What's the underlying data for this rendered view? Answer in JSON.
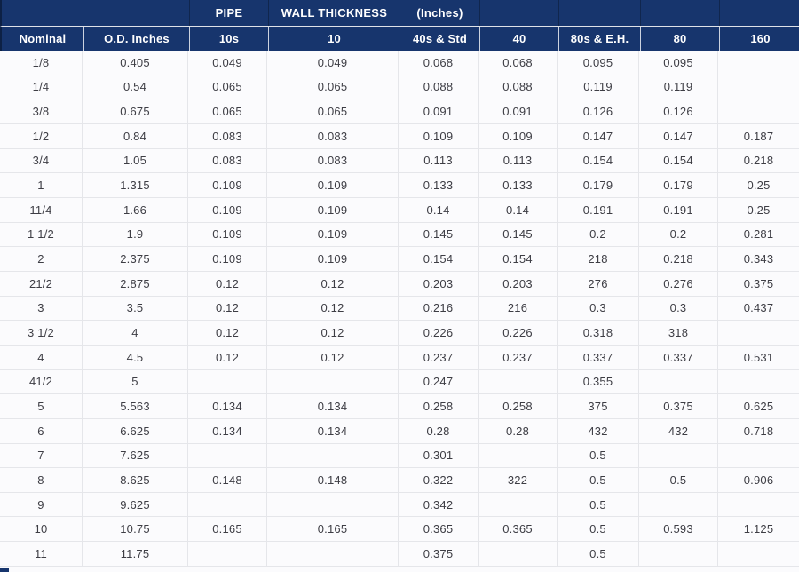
{
  "header": {
    "group_labels": {
      "pipe": "PIPE",
      "wall_thickness": "WALL THICKNESS",
      "inches": "(Inches)"
    }
  },
  "chart_data": {
    "type": "table",
    "title": "PIPE WALL THICKNESS (Inches)",
    "columns": [
      "Nominal",
      "O.D. Inches",
      "10s",
      "10",
      "40s & Std",
      "40",
      "80s & E.H.",
      "80",
      "160"
    ],
    "rows": [
      [
        "1/8",
        "0.405",
        "0.049",
        "0.049",
        "0.068",
        "0.068",
        "0.095",
        "0.095",
        ""
      ],
      [
        "1/4",
        "0.54",
        "0.065",
        "0.065",
        "0.088",
        "0.088",
        "0.119",
        "0.119",
        ""
      ],
      [
        "3/8",
        "0.675",
        "0.065",
        "0.065",
        "0.091",
        "0.091",
        "0.126",
        "0.126",
        ""
      ],
      [
        "1/2",
        "0.84",
        "0.083",
        "0.083",
        "0.109",
        "0.109",
        "0.147",
        "0.147",
        "0.187"
      ],
      [
        "3/4",
        "1.05",
        "0.083",
        "0.083",
        "0.113",
        "0.113",
        "0.154",
        "0.154",
        "0.218"
      ],
      [
        "1",
        "1.315",
        "0.109",
        "0.109",
        "0.133",
        "0.133",
        "0.179",
        "0.179",
        "0.25"
      ],
      [
        "11/4",
        "1.66",
        "0.109",
        "0.109",
        "0.14",
        "0.14",
        "0.191",
        "0.191",
        "0.25"
      ],
      [
        "1 1/2",
        "1.9",
        "0.109",
        "0.109",
        "0.145",
        "0.145",
        "0.2",
        "0.2",
        "0.281"
      ],
      [
        "2",
        "2.375",
        "0.109",
        "0.109",
        "0.154",
        "0.154",
        "218",
        "0.218",
        "0.343"
      ],
      [
        "21/2",
        "2.875",
        "0.12",
        "0.12",
        "0.203",
        "0.203",
        "276",
        "0.276",
        "0.375"
      ],
      [
        "3",
        "3.5",
        "0.12",
        "0.12",
        "0.216",
        "216",
        "0.3",
        "0.3",
        "0.437"
      ],
      [
        "3 1/2",
        "4",
        "0.12",
        "0.12",
        "0.226",
        "0.226",
        "0.318",
        "318",
        ""
      ],
      [
        "4",
        "4.5",
        "0.12",
        "0.12",
        "0.237",
        "0.237",
        "0.337",
        "0.337",
        "0.531"
      ],
      [
        "41/2",
        "5",
        "",
        "",
        "0.247",
        "",
        "0.355",
        "",
        ""
      ],
      [
        "5",
        "5.563",
        "0.134",
        "0.134",
        "0.258",
        "0.258",
        "375",
        "0.375",
        "0.625"
      ],
      [
        "6",
        "6.625",
        "0.134",
        "0.134",
        "0.28",
        "0.28",
        "432",
        "432",
        "0.718"
      ],
      [
        "7",
        "7.625",
        "",
        "",
        "0.301",
        "",
        "0.5",
        "",
        ""
      ],
      [
        "8",
        "8.625",
        "0.148",
        "0.148",
        "0.322",
        "322",
        "0.5",
        "0.5",
        "0.906"
      ],
      [
        "9",
        "9.625",
        "",
        "",
        "0.342",
        "",
        "0.5",
        "",
        ""
      ],
      [
        "10",
        "10.75",
        "0.165",
        "0.165",
        "0.365",
        "0.365",
        "0.5",
        "0.593",
        "1.125"
      ],
      [
        "11",
        "11.75",
        "",
        "",
        "0.375",
        "",
        "0.5",
        "",
        ""
      ]
    ]
  },
  "colors": {
    "header_bg": "#17356d",
    "header_text": "#ffffff",
    "body_text": "#3d3d44",
    "row_bg": "#fbfbfd",
    "divider": "#e5e6ea"
  }
}
